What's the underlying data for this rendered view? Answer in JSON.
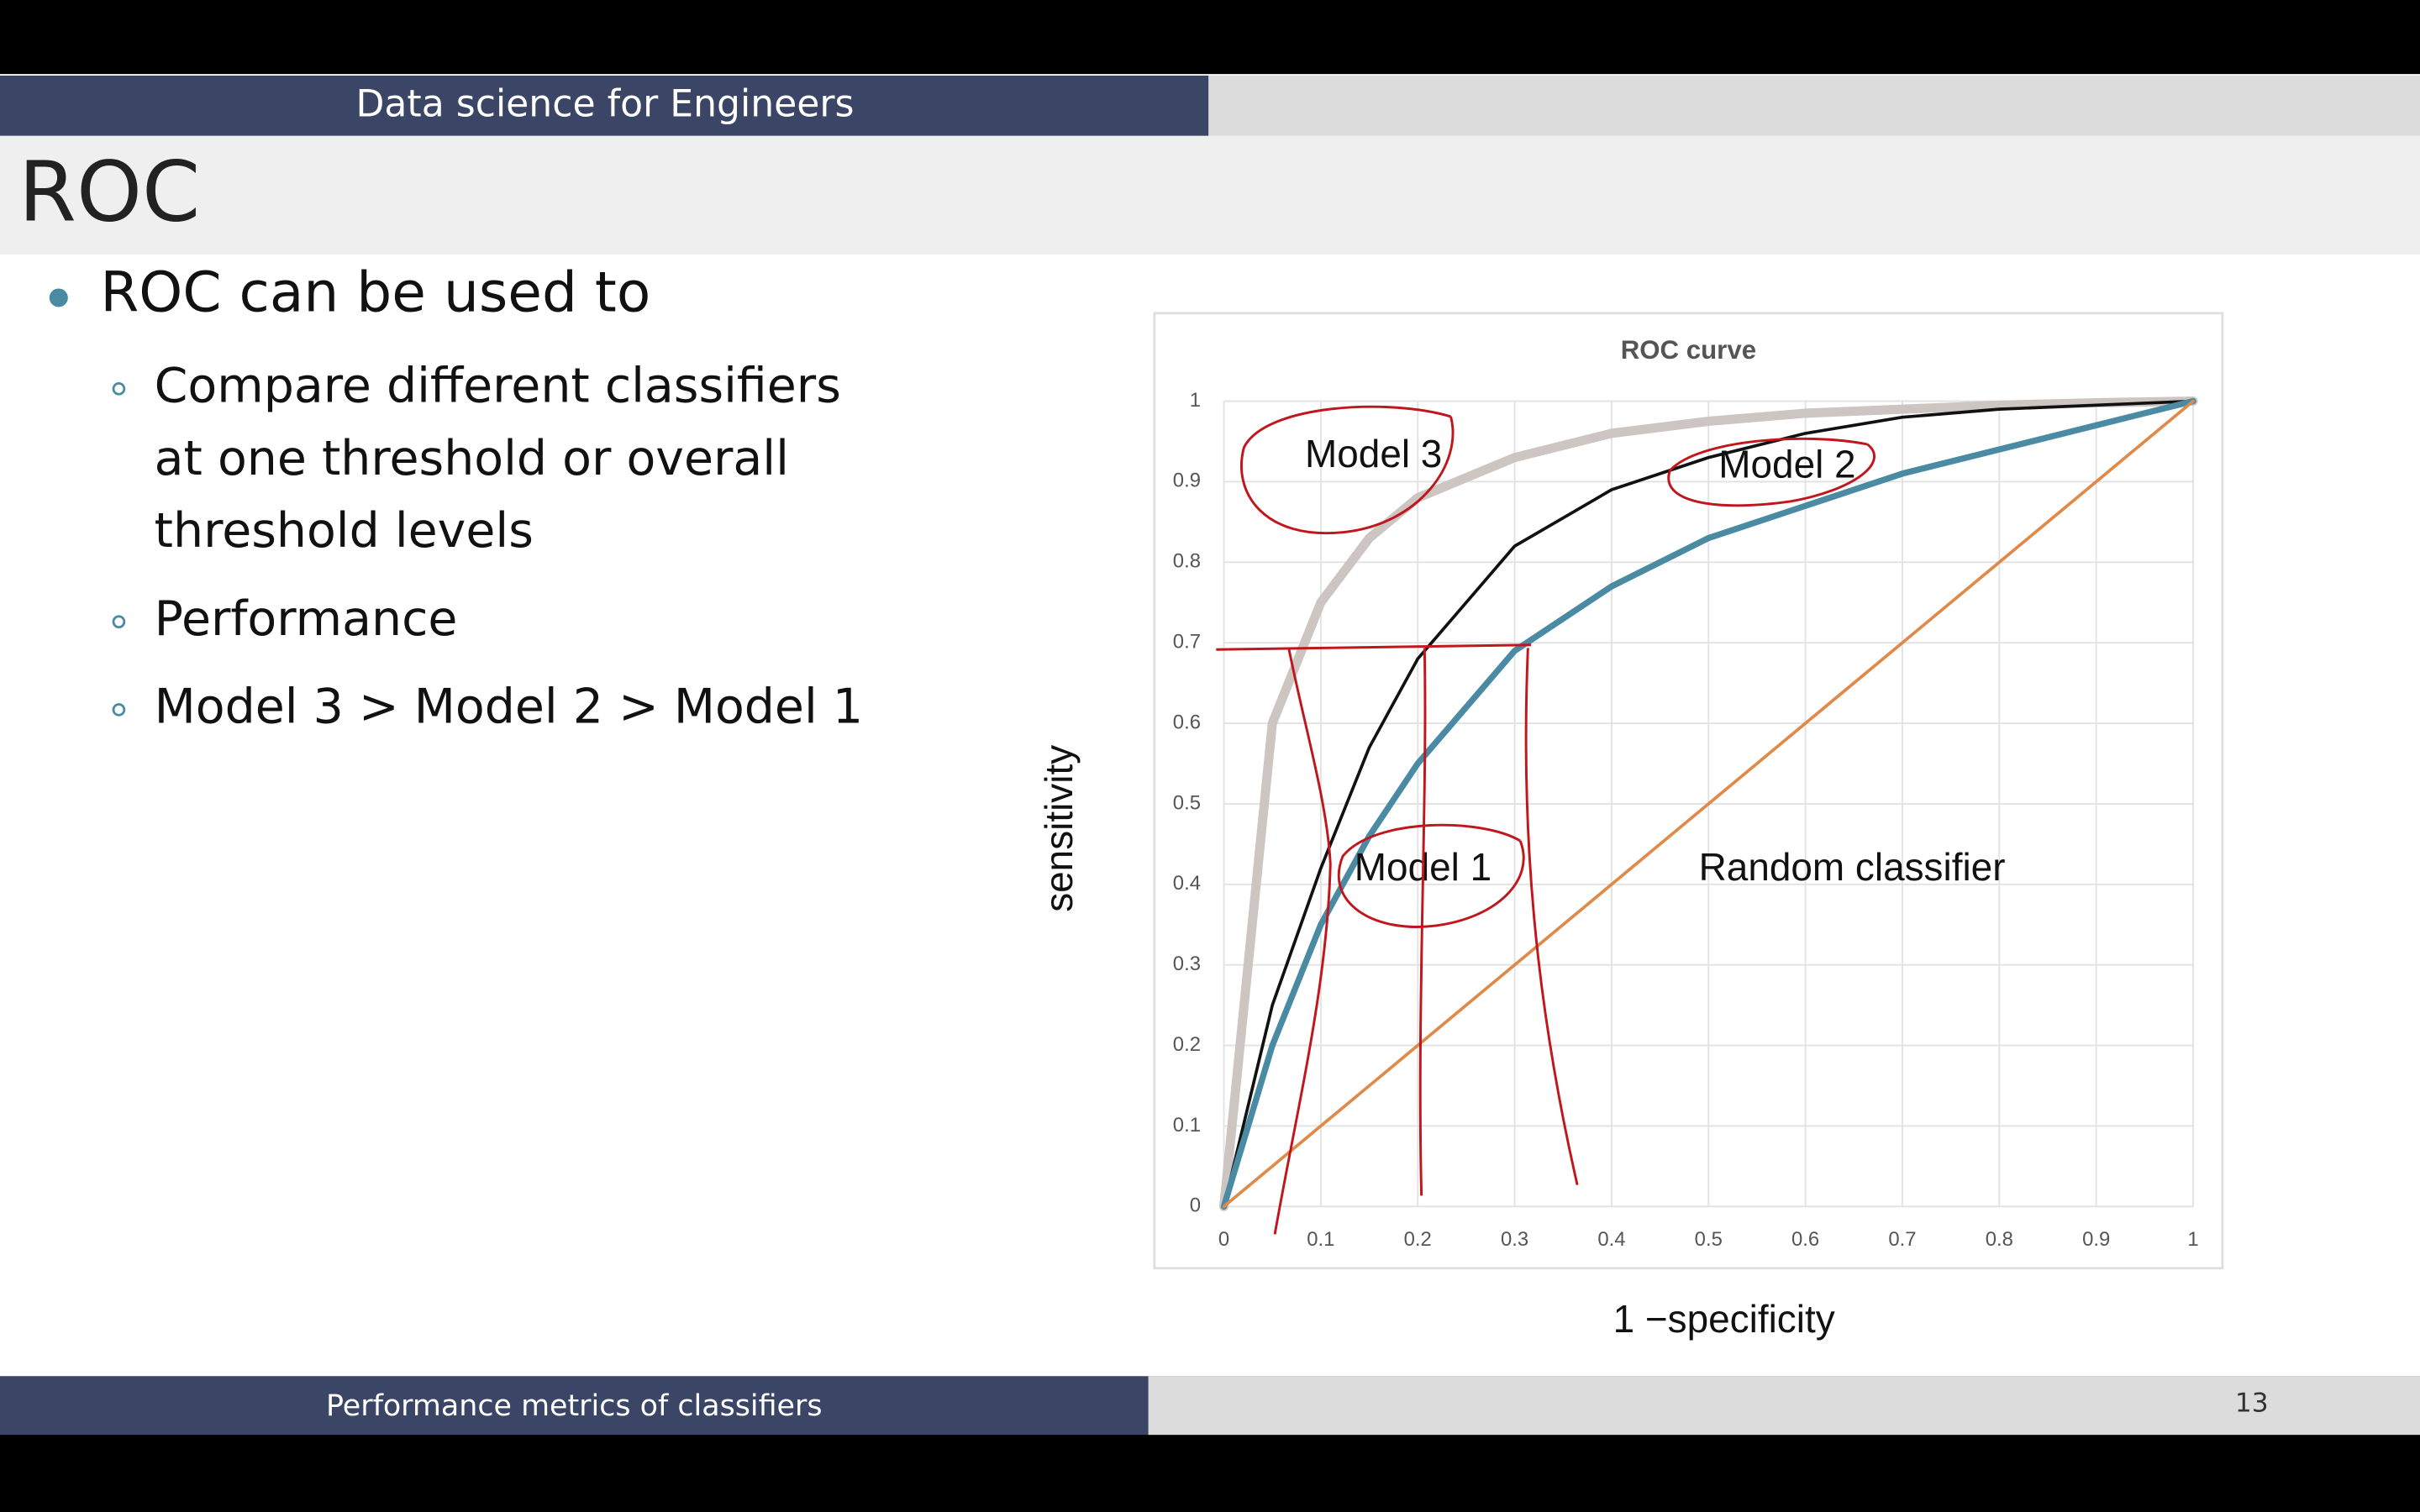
{
  "header": {
    "course": "Data science for Engineers",
    "title": "ROC"
  },
  "slide": {
    "bullet": "ROC can be used to",
    "sub_bullets": [
      [
        "Compare different classifiers",
        "at one threshold or overall",
        "threshold levels"
      ],
      [
        "Performance"
      ],
      [
        "Model 3 > Model 2 > Model 1"
      ]
    ]
  },
  "footer": {
    "section": "Performance metrics of classifiers",
    "page": "13"
  },
  "chart_data": {
    "type": "line",
    "title": "ROC curve",
    "x_label": "1 −specificity",
    "y_label": "sensitivity",
    "x": [
      0,
      0.05,
      0.1,
      0.15,
      0.2,
      0.3,
      0.4,
      0.5,
      0.6,
      0.7,
      0.8,
      0.9,
      1
    ],
    "series": [
      {
        "name": "Model 3",
        "color": "#cdc5c1",
        "values": [
          0,
          0.6,
          0.75,
          0.83,
          0.88,
          0.93,
          0.96,
          0.975,
          0.985,
          0.99,
          0.995,
          0.998,
          1
        ]
      },
      {
        "name": "Model 2",
        "color": "#111111",
        "values": [
          0,
          0.25,
          0.42,
          0.57,
          0.68,
          0.82,
          0.89,
          0.93,
          0.96,
          0.98,
          0.99,
          0.995,
          1
        ]
      },
      {
        "name": "Model 1",
        "color": "#4a8ba3",
        "values": [
          0,
          0.2,
          0.35,
          0.46,
          0.55,
          0.69,
          0.77,
          0.83,
          0.87,
          0.91,
          0.94,
          0.97,
          1
        ]
      },
      {
        "name": "Random classifier",
        "color": "#e08a4a",
        "values": [
          0,
          0.05,
          0.1,
          0.15,
          0.2,
          0.3,
          0.4,
          0.5,
          0.6,
          0.7,
          0.8,
          0.9,
          1
        ]
      }
    ],
    "xlim": [
      0,
      1
    ],
    "ylim": [
      0,
      1
    ],
    "xticks": [
      0,
      0.1,
      0.2,
      0.3,
      0.4,
      0.5,
      0.6,
      0.7,
      0.8,
      0.9,
      1
    ],
    "yticks": [
      0,
      0.1,
      0.2,
      0.3,
      0.4,
      0.5,
      0.6,
      0.7,
      0.8,
      0.9,
      1
    ],
    "grid": true
  }
}
